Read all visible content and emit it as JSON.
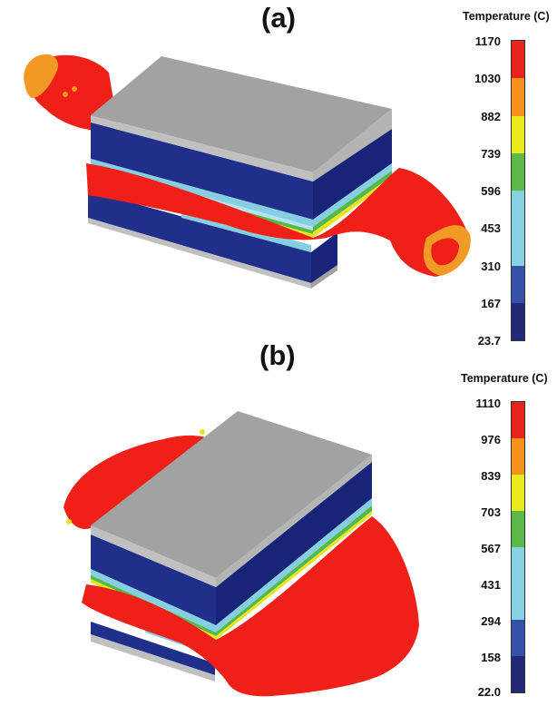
{
  "panels": [
    {
      "label": "(a)",
      "legend": {
        "title": "Temperature (C)",
        "ticks": [
          "1170",
          "1030",
          "882",
          "739",
          "596",
          "453",
          "310",
          "167",
          "23.7"
        ]
      }
    },
    {
      "label": "(b)",
      "legend": {
        "title": "Temperature (C)",
        "ticks": [
          "1110",
          "976",
          "839",
          "703",
          "567",
          "431",
          "294",
          "158",
          "22.0"
        ]
      }
    }
  ],
  "colorbar_colors": [
    "#e8221c",
    "#f5921e",
    "#eaea1e",
    "#5cb848",
    "#86d2e2",
    "#86d2e2",
    "#3551a8",
    "#222a78"
  ],
  "scene_colors": {
    "steel_top": "#a2a2a2",
    "steel_side": "#c0c0c0",
    "substrate": "#1f2f8a",
    "substrate_dark": "#182477",
    "molten": "#ee2018",
    "warm_edge": "#f39a26",
    "band_yellow": "#e9e41e",
    "band_green": "#55b84a",
    "band_cyan": "#86cfe2",
    "band_light": "#b6e3ef"
  }
}
